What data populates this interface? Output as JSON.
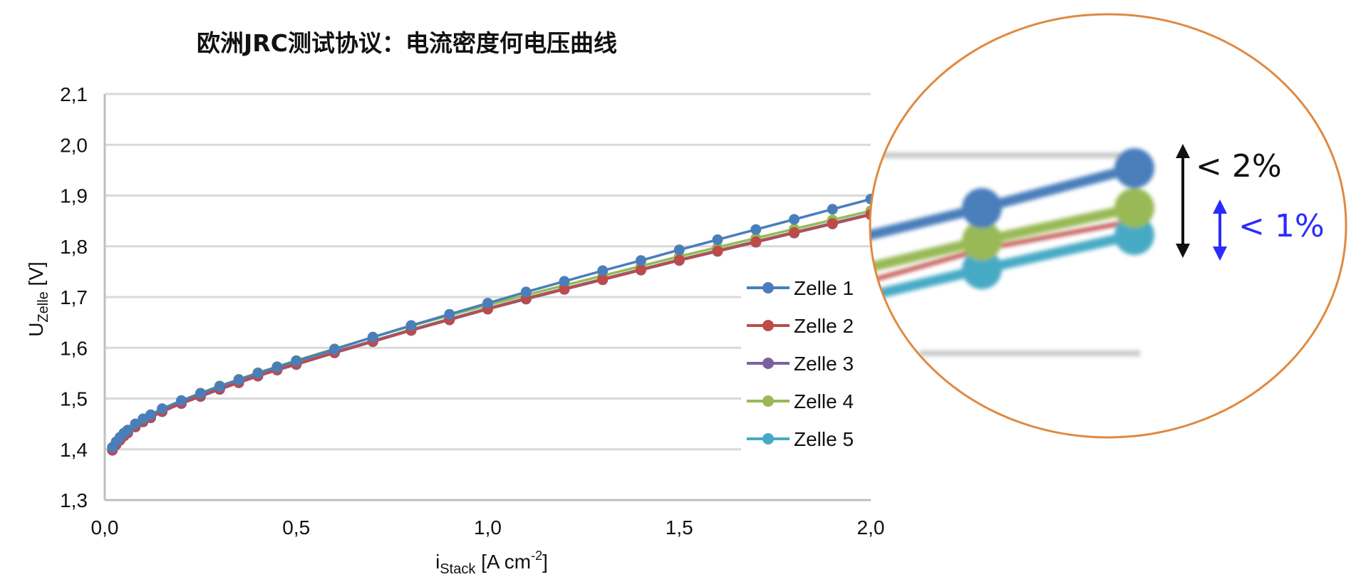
{
  "chart_data": {
    "type": "line",
    "title": "欧洲JRC测试协议：电流密度何电压曲线",
    "xlabel": {
      "main": "i",
      "sub": "Stack",
      "unit_pre": " [A cm",
      "sup": "-2",
      "unit_post": "]"
    },
    "ylabel": {
      "main": "U",
      "sub": "Zelle",
      "unit": " [V]"
    },
    "xlim": [
      0,
      2.0
    ],
    "ylim": [
      1.3,
      2.1
    ],
    "x_ticks": [
      "0,0",
      "0,5",
      "1,0",
      "1,5",
      "2,0"
    ],
    "x_tick_values": [
      0,
      0.5,
      1.0,
      1.5,
      2.0
    ],
    "y_ticks": [
      "1,3",
      "1,4",
      "1,5",
      "1,6",
      "1,7",
      "1,8",
      "1,9",
      "2,0",
      "2,1"
    ],
    "y_tick_values": [
      1.3,
      1.4,
      1.5,
      1.6,
      1.7,
      1.8,
      1.9,
      2.0,
      2.1
    ],
    "grid": "horizontal",
    "legend_position": "right",
    "x": [
      0.02,
      0.03,
      0.04,
      0.05,
      0.06,
      0.08,
      0.1,
      0.12,
      0.15,
      0.2,
      0.25,
      0.3,
      0.35,
      0.4,
      0.45,
      0.5,
      0.6,
      0.7,
      0.8,
      0.9,
      1.0,
      1.1,
      1.2,
      1.3,
      1.4,
      1.5,
      1.6,
      1.7,
      1.8,
      1.9,
      2.0
    ],
    "series": [
      {
        "name": "Zelle 1",
        "color": "#4a7ebb",
        "values": [
          1.404,
          1.415,
          1.424,
          1.432,
          1.438,
          1.45,
          1.46,
          1.468,
          1.48,
          1.496,
          1.51,
          1.524,
          1.537,
          1.55,
          1.562,
          1.574,
          1.597,
          1.621,
          1.644,
          1.666,
          1.688,
          1.71,
          1.731,
          1.752,
          1.772,
          1.793,
          1.813,
          1.833,
          1.853,
          1.873,
          1.893
        ]
      },
      {
        "name": "Zelle 2",
        "color": "#be4b48",
        "values": [
          1.399,
          1.41,
          1.419,
          1.427,
          1.433,
          1.445,
          1.455,
          1.463,
          1.475,
          1.491,
          1.505,
          1.519,
          1.532,
          1.545,
          1.557,
          1.568,
          1.591,
          1.613,
          1.635,
          1.656,
          1.677,
          1.697,
          1.716,
          1.735,
          1.754,
          1.773,
          1.791,
          1.809,
          1.827,
          1.845,
          1.863
        ]
      },
      {
        "name": "Zelle 3",
        "color": "#7d60a0",
        "values": [
          1.398,
          1.409,
          1.418,
          1.426,
          1.432,
          1.444,
          1.454,
          1.462,
          1.474,
          1.49,
          1.504,
          1.518,
          1.531,
          1.544,
          1.556,
          1.567,
          1.59,
          1.612,
          1.634,
          1.655,
          1.676,
          1.696,
          1.715,
          1.734,
          1.753,
          1.772,
          1.79,
          1.808,
          1.826,
          1.844,
          1.862
        ]
      },
      {
        "name": "Zelle 4",
        "color": "#98b954",
        "values": [
          1.404,
          1.415,
          1.424,
          1.432,
          1.438,
          1.45,
          1.46,
          1.468,
          1.48,
          1.496,
          1.511,
          1.525,
          1.538,
          1.551,
          1.563,
          1.575,
          1.598,
          1.621,
          1.643,
          1.664,
          1.684,
          1.704,
          1.723,
          1.742,
          1.761,
          1.78,
          1.798,
          1.816,
          1.834,
          1.852,
          1.87
        ]
      },
      {
        "name": "Zelle 5",
        "color": "#46aac5",
        "values": [
          1.4,
          1.411,
          1.42,
          1.428,
          1.434,
          1.446,
          1.456,
          1.464,
          1.476,
          1.492,
          1.506,
          1.52,
          1.533,
          1.546,
          1.558,
          1.569,
          1.592,
          1.614,
          1.636,
          1.657,
          1.678,
          1.698,
          1.717,
          1.736,
          1.755,
          1.774,
          1.792,
          1.81,
          1.828,
          1.846,
          1.864
        ]
      }
    ],
    "annotations": [
      {
        "text": "< 2%",
        "color": "#111111"
      },
      {
        "text": "< 1%",
        "color": "#2b2bff"
      }
    ],
    "zoom_series": [
      {
        "name": "Zelle 1",
        "color": "#4a7ebb"
      },
      {
        "name": "Zelle 2",
        "color": "#be4b48"
      },
      {
        "name": "Zelle 4",
        "color": "#98b954"
      },
      {
        "name": "Zelle 5",
        "color": "#46aac5"
      }
    ],
    "zoom_border_color": "#e0893f"
  }
}
